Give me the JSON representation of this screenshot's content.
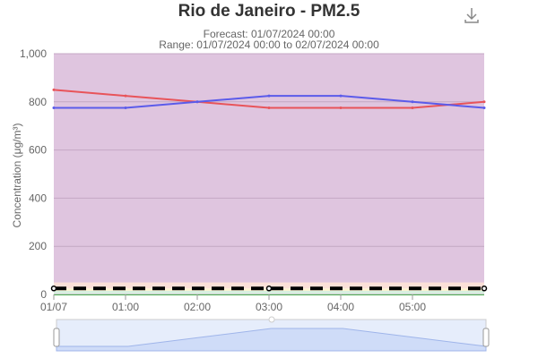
{
  "header": {
    "title": "Rio de Janeiro - PM2.5",
    "subtitle_line1": "Forecast: 01/07/2024 00:00",
    "subtitle_line2": "Range: 01/07/2024 00:00 to 02/07/2024 00:00",
    "download_icon": "download-icon"
  },
  "chart_data": {
    "type": "line",
    "title": "Rio de Janeiro - PM2.5",
    "xlabel": "",
    "ylabel": "Concentration (μg/m³)",
    "ylim": [
      0,
      1000
    ],
    "yticks": [
      "0",
      "200",
      "400",
      "600",
      "800",
      "1,000"
    ],
    "xticks": [
      "01/07",
      "01:00",
      "02:00",
      "03:00",
      "04:00",
      "05:00"
    ],
    "x": [
      0,
      1,
      2,
      3,
      4,
      5,
      6
    ],
    "series": [
      {
        "color": "#e8545a",
        "values": [
          850,
          825,
          800,
          775,
          775,
          775,
          800
        ]
      },
      {
        "color": "#5b5bea",
        "values": [
          775,
          775,
          800,
          825,
          825,
          800,
          775
        ]
      },
      {
        "color": "#000000",
        "style": "dashed",
        "values": [
          25,
          25,
          25,
          25,
          25,
          25,
          25
        ]
      }
    ],
    "bands": [
      {
        "from": 0,
        "to": 15,
        "color": "#d8f0e0"
      },
      {
        "from": 15,
        "to": 25,
        "color": "#fbf3d0"
      },
      {
        "from": 25,
        "to": 50,
        "color": "#fbe0d8"
      },
      {
        "from": 50,
        "to": 1000,
        "color": "#dfc5df"
      }
    ],
    "grid": true,
    "navigator": true
  }
}
